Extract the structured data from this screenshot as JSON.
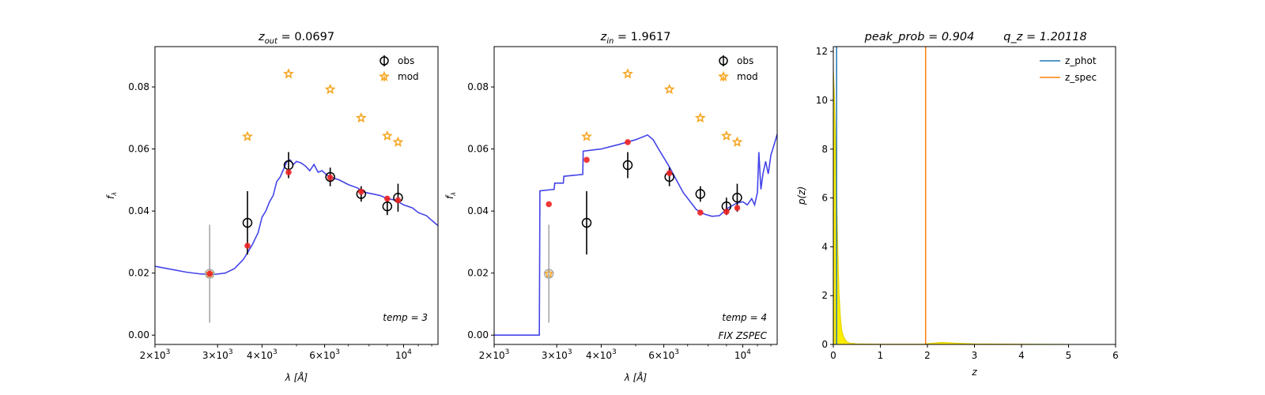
{
  "chart_data": [
    {
      "type": "scatter",
      "title_var": "z",
      "title_sub": "out",
      "title_value": "= 0.0697",
      "xlabel": "λ [Å]",
      "ylabel": "f",
      "ylabel_sub": "λ",
      "xscale": "log",
      "xlim": [
        2000,
        12500
      ],
      "ylim": [
        -0.003,
        0.093
      ],
      "xticks": [
        2000,
        3000,
        4000,
        6000,
        10000
      ],
      "xtick_labels": [
        {
          "m": "2",
          "e": "3"
        },
        {
          "m": "3",
          "e": "3"
        },
        {
          "m": "4",
          "e": "3"
        },
        {
          "m": "6",
          "e": "3"
        },
        {
          "m": "",
          "e": "4"
        }
      ],
      "yticks": [
        0.0,
        0.02,
        0.04,
        0.06,
        0.08
      ],
      "ytick_labels": [
        "0.00",
        "0.02",
        "0.04",
        "0.06",
        "0.08"
      ],
      "annotations": [
        "temp = 3"
      ],
      "legend": [
        "obs",
        "mod"
      ],
      "legend_loc": "upper right",
      "obs": [
        {
          "x": 2850,
          "y": 0.0198,
          "err": 0.0158,
          "gray": true
        },
        {
          "x": 3640,
          "y": 0.0362,
          "err": 0.0102
        },
        {
          "x": 4750,
          "y": 0.0548,
          "err": 0.0042
        },
        {
          "x": 6220,
          "y": 0.051,
          "err": 0.003
        },
        {
          "x": 7600,
          "y": 0.0455,
          "err": 0.0025
        },
        {
          "x": 9000,
          "y": 0.0415,
          "err": 0.0028
        },
        {
          "x": 9650,
          "y": 0.0443,
          "err": 0.0045
        }
      ],
      "mod": [
        {
          "x": 2850,
          "y": 0.0198
        },
        {
          "x": 3640,
          "y": 0.064
        },
        {
          "x": 4750,
          "y": 0.0842
        },
        {
          "x": 6220,
          "y": 0.0792
        },
        {
          "x": 7600,
          "y": 0.07
        },
        {
          "x": 9000,
          "y": 0.0642
        },
        {
          "x": 9650,
          "y": 0.0622
        }
      ],
      "fit": [
        {
          "x": 2850,
          "y": 0.0198
        },
        {
          "x": 3640,
          "y": 0.0288
        },
        {
          "x": 4750,
          "y": 0.0525
        },
        {
          "x": 6220,
          "y": 0.0508
        },
        {
          "x": 7600,
          "y": 0.0462
        },
        {
          "x": 9000,
          "y": 0.044
        },
        {
          "x": 9650,
          "y": 0.0435
        }
      ],
      "sed": [
        [
          2000,
          0.0222
        ],
        [
          2200,
          0.0213
        ],
        [
          2450,
          0.0203
        ],
        [
          2700,
          0.0197
        ],
        [
          2950,
          0.0196
        ],
        [
          3150,
          0.02
        ],
        [
          3350,
          0.0215
        ],
        [
          3550,
          0.0245
        ],
        [
          3750,
          0.029
        ],
        [
          3900,
          0.033
        ],
        [
          4000,
          0.038
        ],
        [
          4100,
          0.04
        ],
        [
          4200,
          0.043
        ],
        [
          4300,
          0.045
        ],
        [
          4400,
          0.0495
        ],
        [
          4500,
          0.051
        ],
        [
          4600,
          0.0535
        ],
        [
          4700,
          0.056
        ],
        [
          4800,
          0.0565
        ],
        [
          4900,
          0.055
        ],
        [
          5000,
          0.056
        ],
        [
          5150,
          0.0555
        ],
        [
          5300,
          0.0545
        ],
        [
          5450,
          0.053
        ],
        [
          5600,
          0.055
        ],
        [
          5750,
          0.0525
        ],
        [
          5900,
          0.053
        ],
        [
          6100,
          0.0515
        ],
        [
          6300,
          0.0508
        ],
        [
          6600,
          0.05
        ],
        [
          7000,
          0.0485
        ],
        [
          7400,
          0.0475
        ],
        [
          7800,
          0.046
        ],
        [
          8200,
          0.0455
        ],
        [
          8600,
          0.045
        ],
        [
          9000,
          0.044
        ],
        [
          9500,
          0.0435
        ],
        [
          10000,
          0.042
        ],
        [
          10600,
          0.041
        ],
        [
          11000,
          0.0395
        ],
        [
          11600,
          0.0385
        ],
        [
          12000,
          0.037
        ],
        [
          12500,
          0.0353
        ]
      ]
    },
    {
      "type": "scatter",
      "title_var": "z",
      "title_sub": "in",
      "title_value": "= 1.9617",
      "xlabel": "λ [Å]",
      "ylabel": "f",
      "ylabel_sub": "λ",
      "xscale": "log",
      "xlim": [
        2000,
        12500
      ],
      "ylim": [
        -0.003,
        0.093
      ],
      "xticks": [
        2000,
        3000,
        4000,
        6000,
        10000
      ],
      "xtick_labels": [
        {
          "m": "2",
          "e": "3"
        },
        {
          "m": "3",
          "e": "3"
        },
        {
          "m": "4",
          "e": "3"
        },
        {
          "m": "6",
          "e": "3"
        },
        {
          "m": "",
          "e": "4"
        }
      ],
      "yticks": [
        0.0,
        0.02,
        0.04,
        0.06,
        0.08
      ],
      "ytick_labels": [
        "0.00",
        "0.02",
        "0.04",
        "0.06",
        "0.08"
      ],
      "annotations": [
        "temp = 4",
        "FIX ZSPEC"
      ],
      "legend": [
        "obs",
        "mod"
      ],
      "legend_loc": "upper right",
      "obs": [
        {
          "x": 2850,
          "y": 0.0198,
          "err": 0.0158,
          "gray": true
        },
        {
          "x": 3640,
          "y": 0.0362,
          "err": 0.0102
        },
        {
          "x": 4750,
          "y": 0.0548,
          "err": 0.0042
        },
        {
          "x": 6220,
          "y": 0.051,
          "err": 0.003
        },
        {
          "x": 7600,
          "y": 0.0455,
          "err": 0.0025
        },
        {
          "x": 9000,
          "y": 0.0415,
          "err": 0.0028
        },
        {
          "x": 9650,
          "y": 0.0443,
          "err": 0.0045
        }
      ],
      "mod": [
        {
          "x": 2850,
          "y": 0.0198
        },
        {
          "x": 3640,
          "y": 0.064
        },
        {
          "x": 4750,
          "y": 0.0842
        },
        {
          "x": 6220,
          "y": 0.0792
        },
        {
          "x": 7600,
          "y": 0.07
        },
        {
          "x": 9000,
          "y": 0.0642
        },
        {
          "x": 9650,
          "y": 0.0622
        }
      ],
      "fit": [
        {
          "x": 2850,
          "y": 0.0422
        },
        {
          "x": 3640,
          "y": 0.0565
        },
        {
          "x": 4750,
          "y": 0.0622
        },
        {
          "x": 6220,
          "y": 0.0522
        },
        {
          "x": 7600,
          "y": 0.0395
        },
        {
          "x": 9000,
          "y": 0.0398
        },
        {
          "x": 9650,
          "y": 0.041
        }
      ],
      "sed": [
        [
          2000,
          0.0
        ],
        [
          2680,
          0.0
        ],
        [
          2690,
          0.0465
        ],
        [
          2950,
          0.047
        ],
        [
          2960,
          0.049
        ],
        [
          3130,
          0.049
        ],
        [
          3140,
          0.0512
        ],
        [
          3550,
          0.0518
        ],
        [
          3560,
          0.0593
        ],
        [
          4000,
          0.06
        ],
        [
          4500,
          0.0615
        ],
        [
          5000,
          0.063
        ],
        [
          5400,
          0.0645
        ],
        [
          5600,
          0.063
        ],
        [
          5800,
          0.06
        ],
        [
          6200,
          0.0545
        ],
        [
          6800,
          0.046
        ],
        [
          7400,
          0.0405
        ],
        [
          7800,
          0.039
        ],
        [
          8200,
          0.0383
        ],
        [
          8600,
          0.0385
        ],
        [
          9100,
          0.041
        ],
        [
          9600,
          0.0425
        ],
        [
          10000,
          0.043
        ],
        [
          10300,
          0.042
        ],
        [
          10600,
          0.044
        ],
        [
          10800,
          0.042
        ],
        [
          11000,
          0.046
        ],
        [
          11100,
          0.059
        ],
        [
          11250,
          0.047
        ],
        [
          11400,
          0.052
        ],
        [
          11600,
          0.056
        ],
        [
          11800,
          0.052
        ],
        [
          12000,
          0.058
        ],
        [
          12300,
          0.062
        ],
        [
          12500,
          0.0648
        ]
      ]
    },
    {
      "type": "line",
      "title_left": "peak_prob = 0.904",
      "title_right": "q_z = 1.20118",
      "xlabel": "z",
      "ylabel": "p(z)",
      "xlim": [
        0,
        6
      ],
      "ylim": [
        0,
        12.2
      ],
      "xticks": [
        0,
        1,
        2,
        3,
        4,
        5,
        6
      ],
      "yticks": [
        0,
        2,
        4,
        6,
        8,
        10,
        12
      ],
      "legend": [
        "z_phot",
        "z_spec"
      ],
      "legend_loc": "upper right",
      "z_phot": 0.0697,
      "z_spec": 1.9617,
      "pz": [
        [
          0.0,
          11.2
        ],
        [
          0.02,
          10.3
        ],
        [
          0.04,
          8.8
        ],
        [
          0.06,
          7.0
        ],
        [
          0.08,
          5.2
        ],
        [
          0.1,
          3.5
        ],
        [
          0.12,
          2.1
        ],
        [
          0.15,
          1.1
        ],
        [
          0.18,
          0.55
        ],
        [
          0.22,
          0.3
        ],
        [
          0.28,
          0.12
        ],
        [
          0.35,
          0.05
        ],
        [
          0.5,
          0.02
        ],
        [
          1.0,
          0.01
        ],
        [
          1.5,
          0.01
        ],
        [
          1.9,
          0.01
        ],
        [
          2.0,
          0.03
        ],
        [
          2.3,
          0.08
        ],
        [
          2.6,
          0.05
        ],
        [
          3.0,
          0.02
        ],
        [
          4.0,
          0.01
        ],
        [
          5.0,
          0.0
        ]
      ]
    }
  ],
  "colors": {
    "sed_line": "#3a3ae8",
    "model_star": "#f5a623",
    "fit_dot": "#ee2222",
    "obs_marker": "#000000",
    "obs_gray": "#aaaaaa",
    "z_phot": "#1f77b4",
    "z_spec": "#ff7f0e",
    "pz_fill": "#ffee00"
  }
}
